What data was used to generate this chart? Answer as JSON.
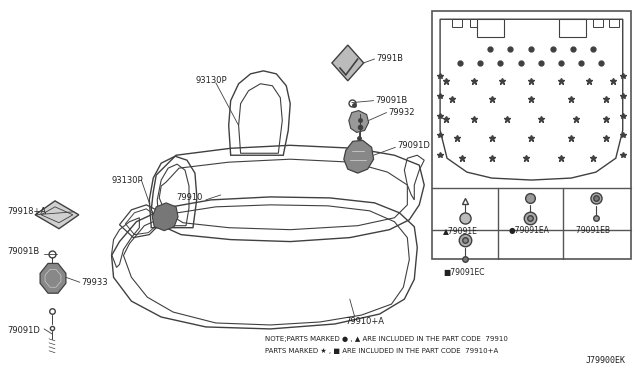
{
  "bg_color": "#ffffff",
  "line_color": "#404040",
  "text_color": "#222222",
  "fig_width": 6.4,
  "fig_height": 3.72,
  "diagram_code": "J79900EK",
  "note_line1": "NOTE;PARTS MARKED ● , ▲ ARE INCLUDED IN THE PART CODE  79910",
  "note_line2": "PARTS MARKED ★ , ■ ARE INCLUDED IN THE PART CODE  79910+A"
}
